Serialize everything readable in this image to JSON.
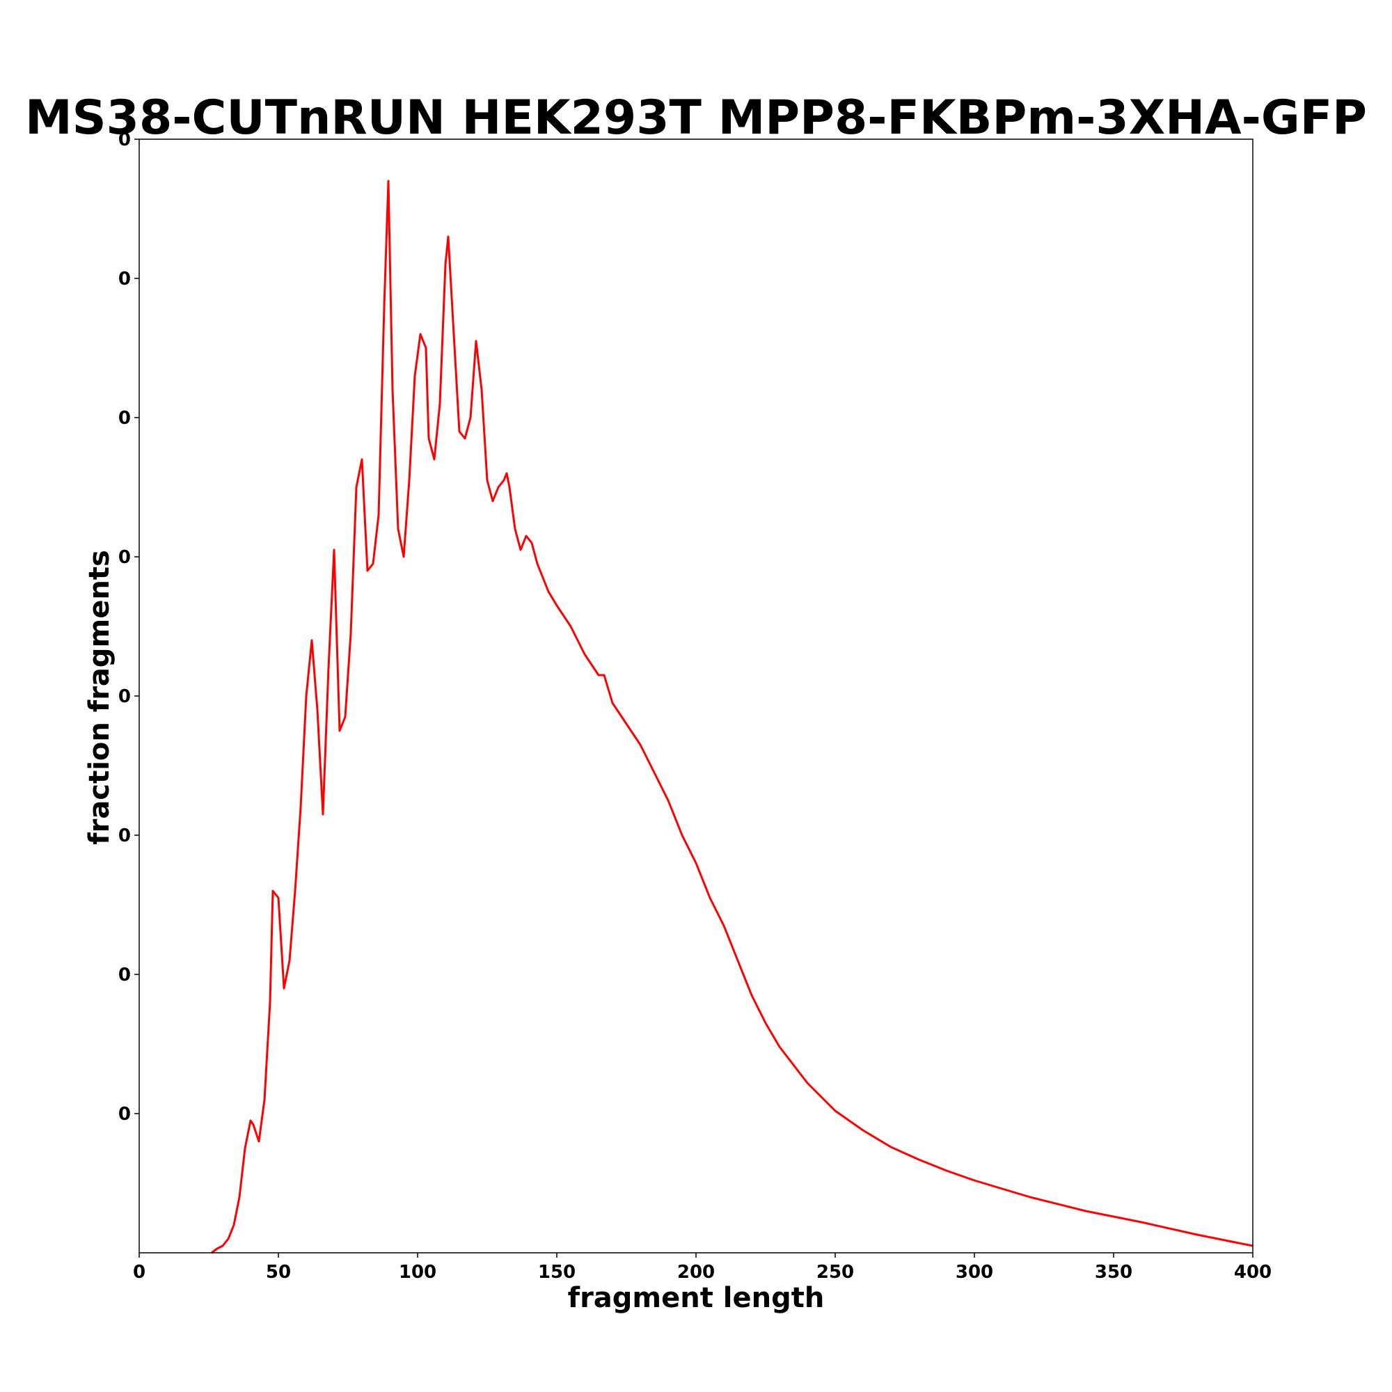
{
  "chart_data": {
    "type": "line",
    "title": "MS38-CUTnRUN HEK293T MPP8-FKBPm-3XHA-GFP",
    "xlabel": "fragment length",
    "ylabel": "fraction fragments",
    "xlim": [
      0,
      400
    ],
    "ylim": [
      0,
      8
    ],
    "xticks": [
      0,
      50,
      100,
      150,
      200,
      250,
      300,
      350,
      400
    ],
    "xtick_labels": [
      "0",
      "50",
      "100",
      "150",
      "200",
      "250",
      "300",
      "350",
      "400"
    ],
    "yticks": [
      1,
      2,
      3,
      4,
      5,
      6,
      7,
      8
    ],
    "ytick_labels": [
      "0",
      "0",
      "0",
      "0",
      "0",
      "0",
      "0",
      "0"
    ],
    "grid": false,
    "series": [
      {
        "color": "#ff0000",
        "x": [
          26,
          28,
          30,
          32,
          34,
          36,
          38,
          40,
          41,
          43,
          45,
          47,
          48,
          50,
          52,
          54,
          56,
          58,
          60,
          62,
          64,
          66,
          68,
          70,
          72,
          74,
          76,
          78,
          80,
          82,
          84,
          86,
          88,
          89.5,
          91,
          93,
          95,
          97,
          99,
          101,
          103,
          104,
          106,
          108,
          110,
          111,
          113,
          115,
          117,
          119,
          121,
          123,
          125,
          127,
          129,
          131,
          132,
          133,
          135,
          137,
          139,
          141,
          143,
          145,
          147,
          150,
          155,
          160,
          165,
          167,
          170,
          175,
          180,
          185,
          190,
          195,
          200,
          205,
          210,
          215,
          220,
          225,
          230,
          235,
          240,
          245,
          250,
          260,
          270,
          280,
          290,
          300,
          320,
          340,
          360,
          380,
          400
        ],
        "y": [
          0.0,
          0.03,
          0.05,
          0.1,
          0.2,
          0.4,
          0.75,
          0.95,
          0.92,
          0.8,
          1.1,
          1.8,
          2.6,
          2.55,
          1.9,
          2.1,
          2.6,
          3.2,
          4.0,
          4.4,
          3.9,
          3.15,
          4.2,
          5.05,
          3.75,
          3.85,
          4.45,
          5.5,
          5.7,
          4.9,
          4.95,
          5.3,
          6.8,
          7.7,
          6.2,
          5.2,
          5.0,
          5.55,
          6.3,
          6.6,
          6.5,
          5.85,
          5.7,
          6.1,
          7.1,
          7.3,
          6.6,
          5.9,
          5.85,
          6.0,
          6.55,
          6.2,
          5.55,
          5.4,
          5.5,
          5.55,
          5.6,
          5.5,
          5.2,
          5.05,
          5.15,
          5.1,
          4.95,
          4.85,
          4.75,
          4.65,
          4.5,
          4.3,
          4.15,
          4.15,
          3.95,
          3.8,
          3.65,
          3.45,
          3.25,
          3.0,
          2.8,
          2.55,
          2.35,
          2.1,
          1.85,
          1.65,
          1.48,
          1.35,
          1.22,
          1.12,
          1.02,
          0.88,
          0.76,
          0.67,
          0.59,
          0.52,
          0.4,
          0.3,
          0.22,
          0.13,
          0.05
        ]
      }
    ]
  }
}
